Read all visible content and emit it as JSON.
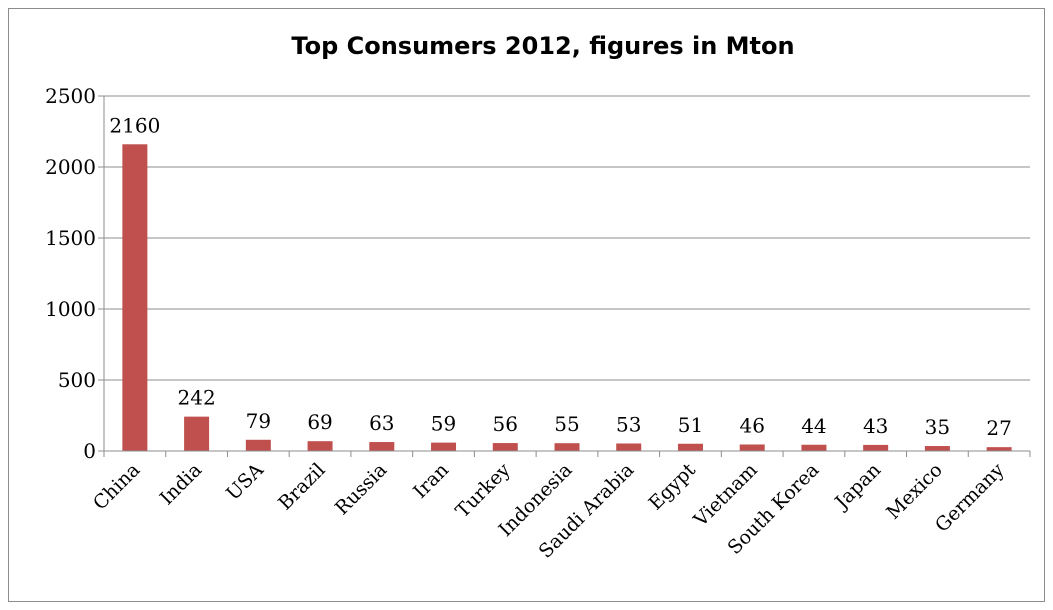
{
  "chart_data": {
    "type": "bar",
    "title": "Top Consumers 2012, figures in Mton",
    "xlabel": "",
    "ylabel": "",
    "ylim": [
      0,
      2500
    ],
    "yticks": [
      0,
      500,
      1000,
      1500,
      2000,
      2500
    ],
    "grid": true,
    "legend": "none",
    "bar_color": "#c0504d",
    "categories": [
      "China",
      "India",
      "USA",
      "Brazil",
      "Russia",
      "Iran",
      "Turkey",
      "Indonesia",
      "Saudi Arabia",
      "Egypt",
      "Vietnam",
      "South Korea",
      "Japan",
      "Mexico",
      "Germany"
    ],
    "values": [
      2160,
      242,
      79,
      69,
      63,
      59,
      56,
      55,
      53,
      51,
      46,
      44,
      43,
      35,
      27
    ]
  }
}
